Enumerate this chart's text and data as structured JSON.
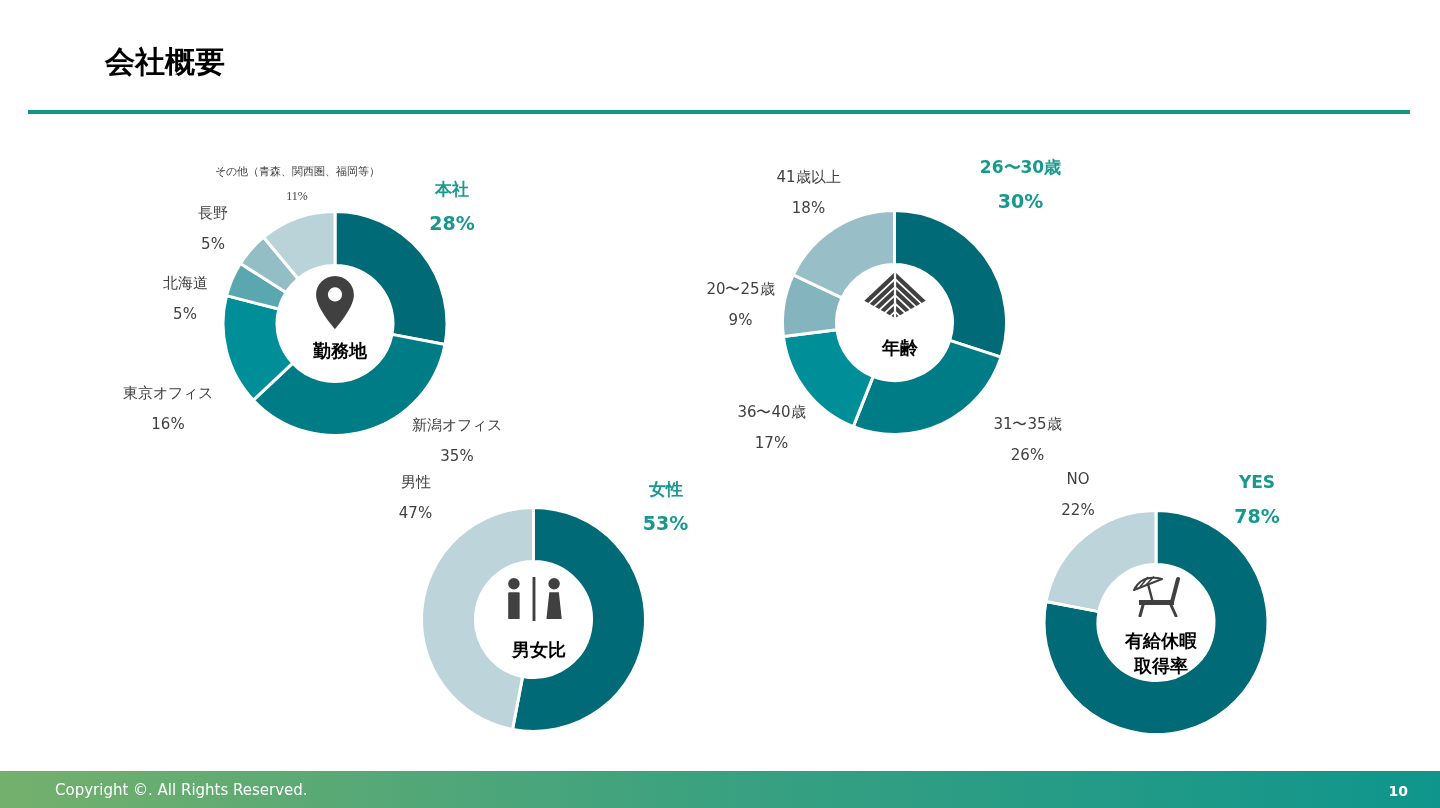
{
  "chart_data": [
    {
      "type": "donut",
      "title": "勤務地",
      "categories": [
        "本社",
        "新潟オフィス",
        "東京オフィス",
        "北海道",
        "長野",
        "その他（青森、関西圏、福岡等）"
      ],
      "values": [
        28,
        35,
        16,
        5,
        5,
        11
      ],
      "value_labels": [
        "28%",
        "35%",
        "16%",
        "5%",
        "5%",
        "11%"
      ],
      "colors": [
        "#006b76",
        "#007c87",
        "#008e98",
        "#5aa7b0",
        "#93bec6",
        "#b9d3d9"
      ],
      "annotations": [
        "会社概要",
        "Copyright ©. All Rights Reserved.",
        "10"
      ]
    },
    {
      "type": "donut",
      "title": "年齢",
      "categories": [
        "26〜30歳",
        "31〜35歳",
        "36〜40歳",
        "20〜25歳",
        "41歳以上"
      ],
      "values": [
        30,
        26,
        17,
        9,
        18
      ],
      "value_labels": [
        "30%",
        "26%",
        "17%",
        "9%",
        "18%"
      ],
      "colors": [
        "#006b76",
        "#007c87",
        "#008e98",
        "#84b5bf",
        "#98bfc7"
      ]
    },
    {
      "type": "donut",
      "title": "男女比",
      "categories": [
        "女性",
        "男性"
      ],
      "values": [
        53,
        47
      ],
      "value_labels": [
        "53%",
        "47%"
      ],
      "colors": [
        "#006b76",
        "#bcd4da"
      ]
    },
    {
      "type": "donut",
      "title": "有給休暇取得率",
      "categories": [
        "YES",
        "NO"
      ],
      "values": [
        78,
        22
      ],
      "value_labels": [
        "78%",
        "22%"
      ],
      "colors": [
        "#006b76",
        "#bcd4da"
      ]
    }
  ]
}
